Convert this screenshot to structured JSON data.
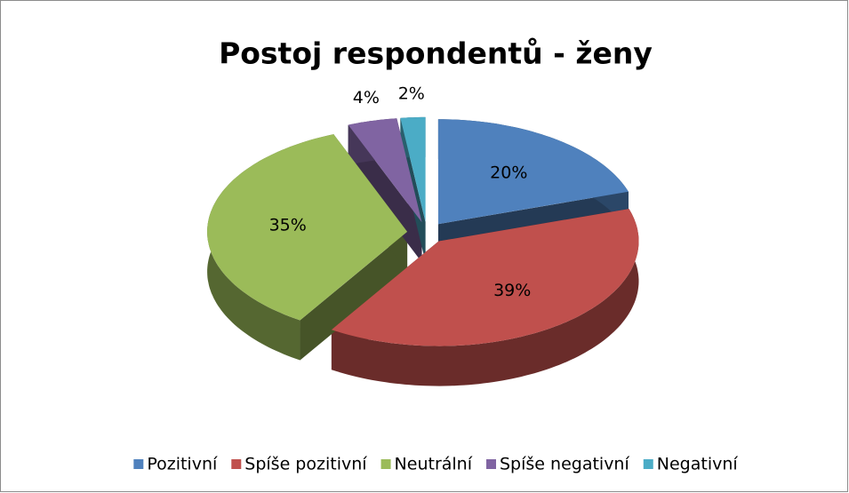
{
  "chart_data": {
    "type": "pie",
    "title": "Postoj respondentů - ženy",
    "categories": [
      "Pozitivní",
      "Spíše pozitivní",
      "Neutrální",
      "Spíše negativní",
      "Negativní"
    ],
    "values": [
      20,
      39,
      35,
      4,
      2
    ],
    "value_labels": [
      "20%",
      "39%",
      "35%",
      "4%",
      "2%"
    ],
    "colors": [
      "#4f81bd",
      "#c0504d",
      "#9bbb59",
      "#8064a2",
      "#4bacc6"
    ],
    "legend": "bottom"
  }
}
